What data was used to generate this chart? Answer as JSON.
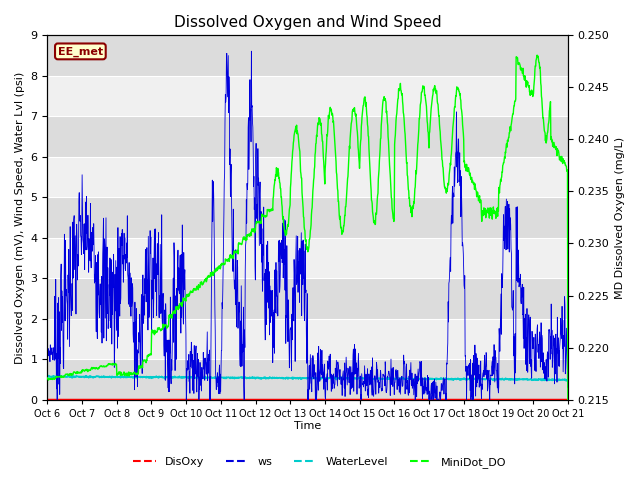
{
  "title": "Dissolved Oxygen and Wind Speed",
  "xlabel": "Time",
  "ylabel_left": "Dissolved Oxygen (mV), Wind Speed, Water Lvl (psi)",
  "ylabel_right": "MD Dissolved Oxygen (mg/L)",
  "ylim_left": [
    0.0,
    9.0
  ],
  "ylim_right": [
    0.215,
    0.25
  ],
  "yticks_left": [
    0.0,
    1.0,
    2.0,
    3.0,
    4.0,
    5.0,
    6.0,
    7.0,
    8.0,
    9.0
  ],
  "yticks_right": [
    0.215,
    0.22,
    0.225,
    0.23,
    0.235,
    0.24,
    0.245,
    0.25
  ],
  "xtick_labels": [
    "Oct 6",
    "Oct 7",
    "Oct 8",
    "Oct 9",
    "Oct 10",
    "Oct 11",
    "Oct 12",
    "Oct 13",
    "Oct 14",
    "Oct 15",
    "Oct 16",
    "Oct 17",
    "Oct 18",
    "Oct 19",
    "Oct 20",
    "Oct 21"
  ],
  "station_label": "EE_met",
  "station_label_bg": "#FFFFCC",
  "station_label_border": "#8B0000",
  "plot_bg_color": "#F0F0F0",
  "band_color": "#DCDCDC",
  "grid_color": "#FFFFFF",
  "DisOxy_color": "#FF0000",
  "ws_color": "#0000DD",
  "WaterLevel_color": "#00CCCC",
  "MiniDot_color": "#00FF00"
}
